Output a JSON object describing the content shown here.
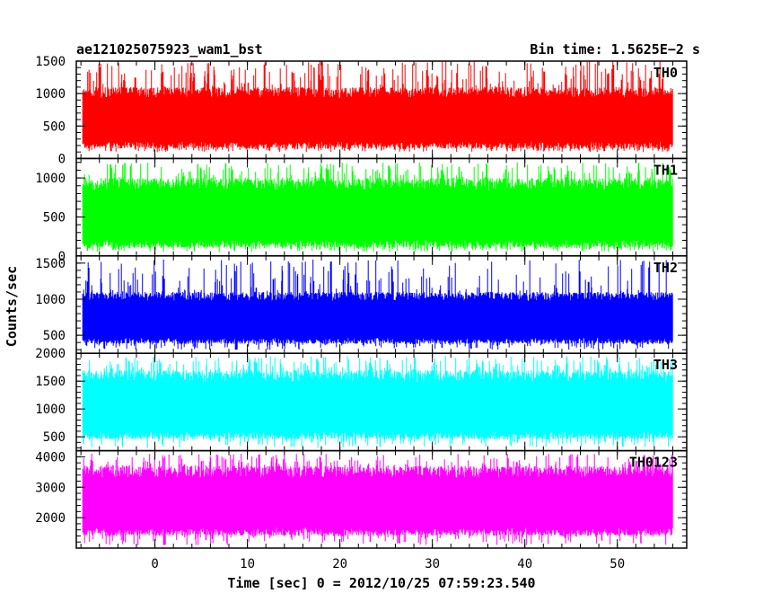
{
  "header": {
    "title": "ae121025075923_wam1_bst",
    "bin_time": "Bin time: 1.5625E−2 s"
  },
  "chart_data": {
    "type": "line",
    "title": "ae121025075923_wam1_bst",
    "subtitle": "Bin time: 1.5625E−2 s",
    "xlabel": "Time [sec] 0 = 2012/10/25 07:59:23.540",
    "ylabel": "Counts/sec",
    "xlim": [
      -8.5,
      57.5
    ],
    "x_data_range": [
      -7.8,
      56.0
    ],
    "x_ticks": [
      0,
      10,
      20,
      30,
      40,
      50
    ],
    "x_tick_labels": [
      "0",
      "10",
      "20",
      "30",
      "40",
      "50"
    ],
    "grid": false,
    "panels": [
      {
        "name": "TH0",
        "color": "#ff0000",
        "ylim": [
          0,
          1500
        ],
        "y_ticks": [
          0,
          500,
          1000,
          1500
        ],
        "y_tick_labels": [
          "0",
          "500",
          "1000",
          "1500"
        ],
        "typical_range": [
          150,
          1100
        ],
        "min": 100,
        "max": 1500
      },
      {
        "name": "TH1",
        "color": "#00ff00",
        "ylim": [
          0,
          1250
        ],
        "y_ticks": [
          0,
          500,
          1000
        ],
        "y_tick_labels": [
          "0",
          "500",
          "1000"
        ],
        "typical_range": [
          100,
          1000
        ],
        "min": 50,
        "max": 1200
      },
      {
        "name": "TH2",
        "color": "#0000ff",
        "ylim": [
          250,
          1600
        ],
        "y_ticks": [
          500,
          1000,
          1500
        ],
        "y_tick_labels": [
          "500",
          "1000",
          "1500"
        ],
        "typical_range": [
          380,
          1100
        ],
        "min": 300,
        "max": 1550
      },
      {
        "name": "TH3",
        "color": "#00ffff",
        "ylim": [
          250,
          2000
        ],
        "y_ticks": [
          500,
          1000,
          1500,
          2000
        ],
        "y_tick_labels": [
          "500",
          "1000",
          "1500",
          "2000"
        ],
        "typical_range": [
          450,
          1700
        ],
        "min": 300,
        "max": 1950
      },
      {
        "name": "TH0123",
        "color": "#ff00ff",
        "ylim": [
          1000,
          4200
        ],
        "y_ticks": [
          2000,
          3000,
          4000
        ],
        "y_tick_labels": [
          "2000",
          "3000",
          "4000"
        ],
        "typical_range": [
          1400,
          3700
        ],
        "min": 1100,
        "max": 4100
      }
    ]
  }
}
